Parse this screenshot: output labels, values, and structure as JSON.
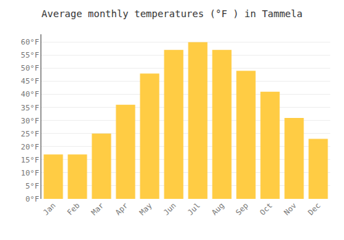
{
  "chart_data": {
    "type": "bar",
    "title": "Average monthly temperatures (°F ) in Tammela",
    "categories": [
      "Jan",
      "Feb",
      "Mar",
      "Apr",
      "May",
      "Jun",
      "Jul",
      "Aug",
      "Sep",
      "Oct",
      "Nov",
      "Dec"
    ],
    "values": [
      17,
      17,
      25,
      36,
      48,
      57,
      60,
      57,
      49,
      41,
      31,
      23
    ],
    "color": "#FFCC44",
    "ylim": [
      0,
      63
    ],
    "yticks": [
      {
        "value": 0,
        "label": "0°F"
      },
      {
        "value": 5,
        "label": "5°F"
      },
      {
        "value": 10,
        "label": "10°F"
      },
      {
        "value": 15,
        "label": "15°F"
      },
      {
        "value": 20,
        "label": "20°F"
      },
      {
        "value": 25,
        "label": "25°F"
      },
      {
        "value": 30,
        "label": "30°F"
      },
      {
        "value": 35,
        "label": "35°F"
      },
      {
        "value": 40,
        "label": "40°F"
      },
      {
        "value": 45,
        "label": "45°F"
      },
      {
        "value": 50,
        "label": "50°F"
      },
      {
        "value": 55,
        "label": "55°F"
      },
      {
        "value": 60,
        "label": "60°F"
      }
    ],
    "grid": true
  }
}
